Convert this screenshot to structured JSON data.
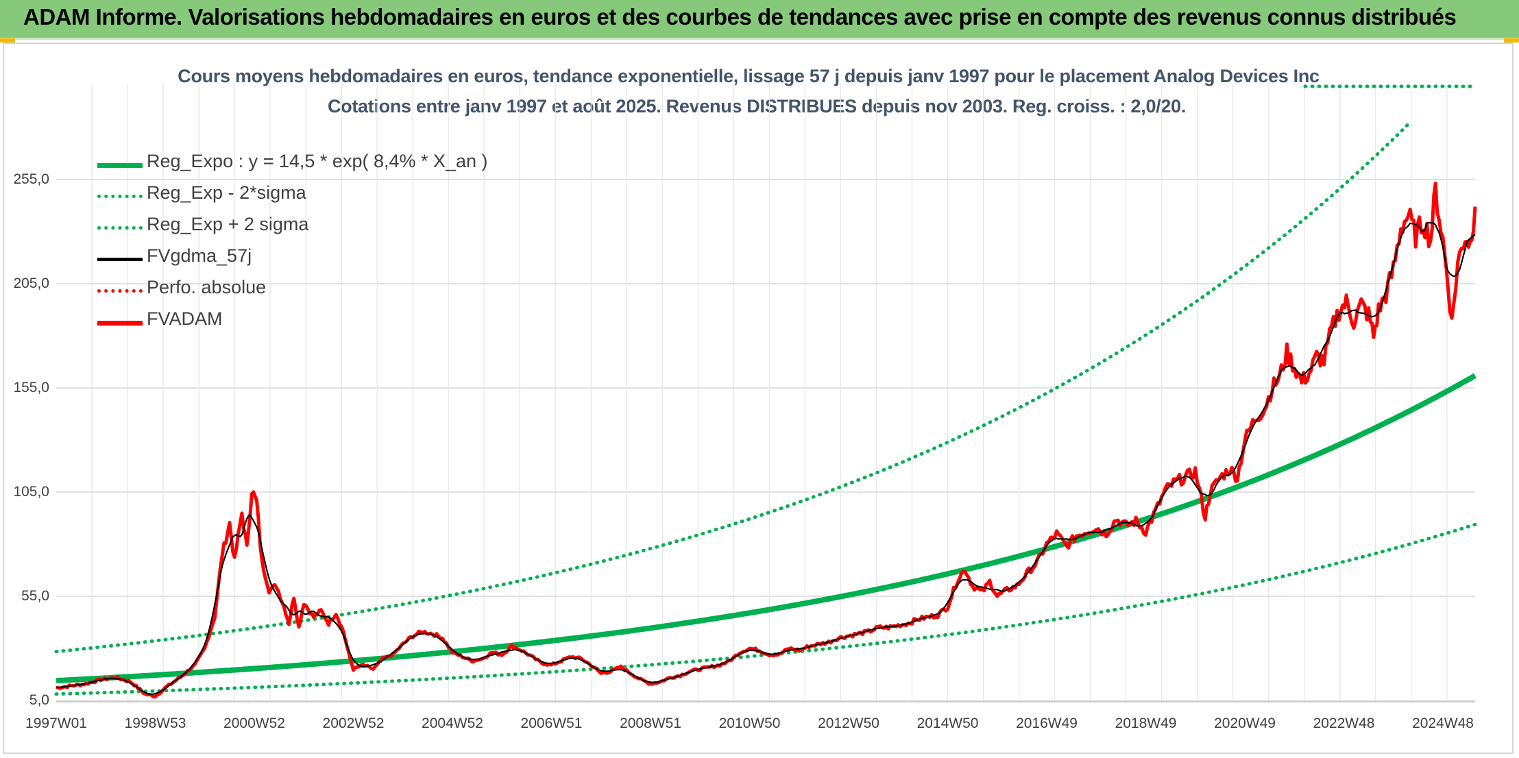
{
  "banner": {
    "title": "ADAM Informe. Valorisations hebdomadaires en euros et des courbes de tendances avec prise en compte des revenus connus distribués"
  },
  "colors": {
    "banner": "#86c97b",
    "reg_expo": "#00b050",
    "fvgdma": "#000000",
    "fvadam": "#ff0000",
    "perfo": "#ff0000",
    "grid": "#d9d9d9"
  },
  "chart_data": {
    "type": "line",
    "title": "Cours moyens hebdomadaires en euros, tendance exponentielle, lissage 57 j depuis janv 1997 pour le placement Analog Devices Inc",
    "subtitle": "Cotations entre janv 1997 et août 2025. Revenus DISTRIBUES depuis nov 2003. Reg. croiss. : 2,0/20.",
    "xlabel": "",
    "ylabel": "",
    "x_range": [
      1997.0,
      2025.65
    ],
    "ylim": [
      5,
      280
    ],
    "y_ticks": [
      "5,0",
      "55,0",
      "105,0",
      "155,0",
      "205,0",
      "255,0"
    ],
    "y_tick_values": [
      5,
      55,
      105,
      155,
      205,
      255
    ],
    "x_ticks": [
      "1997W01",
      "1998W53",
      "2000W52",
      "2002W52",
      "2004W52",
      "2006W51",
      "2008W51",
      "2010W50",
      "2012W50",
      "2014W50",
      "2016W49",
      "2018W49",
      "2020W49",
      "2022W48",
      "2024W48"
    ],
    "x_tick_values": [
      1997.0,
      1999.0,
      2001.0,
      2003.0,
      2005.0,
      2007.0,
      2009.0,
      2011.0,
      2013.0,
      2015.0,
      2017.0,
      2019.0,
      2021.0,
      2023.0,
      2025.0
    ],
    "grid": true,
    "legend_position": "top-left",
    "regression": {
      "a": 14.5,
      "rate": 0.084,
      "sigma_factor_low": 0.556,
      "sigma_factor_high": 1.96
    },
    "legend": [
      {
        "label": "Reg_Expo : y = 14,5 * exp( 8,4% *  X_an )",
        "color": "#00b050",
        "style": "solid-thick"
      },
      {
        "label": "Reg_Exp - 2*sigma",
        "color": "#00b050",
        "style": "dotted"
      },
      {
        "label": "Reg_Exp + 2 sigma",
        "color": "#00b050",
        "style": "dotted"
      },
      {
        "label": "FVgdma_57j",
        "color": "#000000",
        "style": "solid"
      },
      {
        "label": "Perfo. absolue",
        "color": "#ff0000",
        "style": "dotted"
      },
      {
        "label": "FVADAM",
        "color": "#ff0000",
        "style": "solid-thick"
      }
    ],
    "series": [
      {
        "name": "FVADAM",
        "points": [
          [
            1997.0,
            11
          ],
          [
            1997.3,
            12
          ],
          [
            1997.6,
            13
          ],
          [
            1997.9,
            15
          ],
          [
            1998.2,
            16
          ],
          [
            1998.5,
            14
          ],
          [
            1998.8,
            8
          ],
          [
            1999.0,
            7
          ],
          [
            1999.2,
            11
          ],
          [
            1999.5,
            16
          ],
          [
            1999.8,
            22
          ],
          [
            2000.0,
            30
          ],
          [
            2000.2,
            45
          ],
          [
            2000.35,
            75
          ],
          [
            2000.5,
            90
          ],
          [
            2000.6,
            72
          ],
          [
            2000.75,
            95
          ],
          [
            2000.85,
            78
          ],
          [
            2000.95,
            106
          ],
          [
            2001.05,
            100
          ],
          [
            2001.15,
            72
          ],
          [
            2001.3,
            58
          ],
          [
            2001.45,
            60
          ],
          [
            2001.6,
            50
          ],
          [
            2001.7,
            42
          ],
          [
            2001.8,
            55
          ],
          [
            2001.9,
            40
          ],
          [
            2002.0,
            52
          ],
          [
            2002.2,
            45
          ],
          [
            2002.35,
            48
          ],
          [
            2002.5,
            42
          ],
          [
            2002.65,
            47
          ],
          [
            2002.8,
            38
          ],
          [
            2002.9,
            28
          ],
          [
            2003.0,
            20
          ],
          [
            2003.2,
            22
          ],
          [
            2003.4,
            20
          ],
          [
            2003.6,
            25
          ],
          [
            2003.8,
            27
          ],
          [
            2004.0,
            32
          ],
          [
            2004.2,
            36
          ],
          [
            2004.4,
            38
          ],
          [
            2004.6,
            37
          ],
          [
            2004.8,
            35
          ],
          [
            2005.0,
            28
          ],
          [
            2005.2,
            26
          ],
          [
            2005.4,
            24
          ],
          [
            2005.6,
            25
          ],
          [
            2005.8,
            28
          ],
          [
            2006.0,
            27
          ],
          [
            2006.2,
            31
          ],
          [
            2006.4,
            29
          ],
          [
            2006.6,
            26
          ],
          [
            2006.8,
            23
          ],
          [
            2007.0,
            22
          ],
          [
            2007.2,
            24
          ],
          [
            2007.4,
            26
          ],
          [
            2007.6,
            25
          ],
          [
            2007.8,
            22
          ],
          [
            2008.0,
            18
          ],
          [
            2008.2,
            19
          ],
          [
            2008.4,
            21
          ],
          [
            2008.6,
            18
          ],
          [
            2008.8,
            15
          ],
          [
            2009.0,
            13
          ],
          [
            2009.2,
            14
          ],
          [
            2009.4,
            16
          ],
          [
            2009.6,
            17
          ],
          [
            2009.8,
            19
          ],
          [
            2010.0,
            20
          ],
          [
            2010.2,
            21
          ],
          [
            2010.4,
            22
          ],
          [
            2010.6,
            24
          ],
          [
            2010.8,
            28
          ],
          [
            2011.0,
            30
          ],
          [
            2011.2,
            29
          ],
          [
            2011.4,
            27
          ],
          [
            2011.6,
            27
          ],
          [
            2011.8,
            30
          ],
          [
            2012.0,
            29
          ],
          [
            2012.2,
            31
          ],
          [
            2012.4,
            32
          ],
          [
            2012.6,
            33
          ],
          [
            2012.8,
            35
          ],
          [
            2013.0,
            36
          ],
          [
            2013.2,
            37
          ],
          [
            2013.4,
            38
          ],
          [
            2013.6,
            40
          ],
          [
            2013.8,
            40
          ],
          [
            2014.0,
            41
          ],
          [
            2014.2,
            42
          ],
          [
            2014.4,
            44
          ],
          [
            2014.6,
            45
          ],
          [
            2014.8,
            46
          ],
          [
            2015.0,
            50
          ],
          [
            2015.2,
            63
          ],
          [
            2015.35,
            68
          ],
          [
            2015.5,
            60
          ],
          [
            2015.7,
            57
          ],
          [
            2015.85,
            62
          ],
          [
            2016.0,
            55
          ],
          [
            2016.2,
            58
          ],
          [
            2016.4,
            60
          ],
          [
            2016.6,
            66
          ],
          [
            2016.8,
            71
          ],
          [
            2017.0,
            80
          ],
          [
            2017.2,
            85
          ],
          [
            2017.4,
            79
          ],
          [
            2017.6,
            84
          ],
          [
            2017.8,
            86
          ],
          [
            2018.0,
            88
          ],
          [
            2018.2,
            85
          ],
          [
            2018.4,
            92
          ],
          [
            2018.6,
            89
          ],
          [
            2018.8,
            91
          ],
          [
            2019.0,
            86
          ],
          [
            2019.2,
            96
          ],
          [
            2019.4,
            106
          ],
          [
            2019.6,
            110
          ],
          [
            2019.8,
            112
          ],
          [
            2020.0,
            115
          ],
          [
            2020.2,
            93
          ],
          [
            2020.3,
            105
          ],
          [
            2020.5,
            112
          ],
          [
            2020.7,
            116
          ],
          [
            2020.85,
            112
          ],
          [
            2021.0,
            130
          ],
          [
            2021.2,
            140
          ],
          [
            2021.4,
            145
          ],
          [
            2021.55,
            155
          ],
          [
            2021.7,
            160
          ],
          [
            2021.85,
            172
          ],
          [
            2022.0,
            165
          ],
          [
            2022.15,
            158
          ],
          [
            2022.3,
            162
          ],
          [
            2022.45,
            170
          ],
          [
            2022.6,
            168
          ],
          [
            2022.75,
            183
          ],
          [
            2022.9,
            192
          ],
          [
            2023.05,
            196
          ],
          [
            2023.2,
            187
          ],
          [
            2023.35,
            195
          ],
          [
            2023.5,
            190
          ],
          [
            2023.6,
            180
          ],
          [
            2023.7,
            192
          ],
          [
            2023.85,
            200
          ],
          [
            2024.0,
            212
          ],
          [
            2024.15,
            232
          ],
          [
            2024.3,
            238
          ],
          [
            2024.45,
            228
          ],
          [
            2024.6,
            235
          ],
          [
            2024.75,
            226
          ],
          [
            2024.85,
            250
          ],
          [
            2024.92,
            238
          ],
          [
            2025.0,
            226
          ],
          [
            2025.1,
            206
          ],
          [
            2025.18,
            186
          ],
          [
            2025.3,
            215
          ],
          [
            2025.45,
            228
          ],
          [
            2025.55,
            224
          ],
          [
            2025.65,
            242
          ]
        ]
      }
    ]
  }
}
